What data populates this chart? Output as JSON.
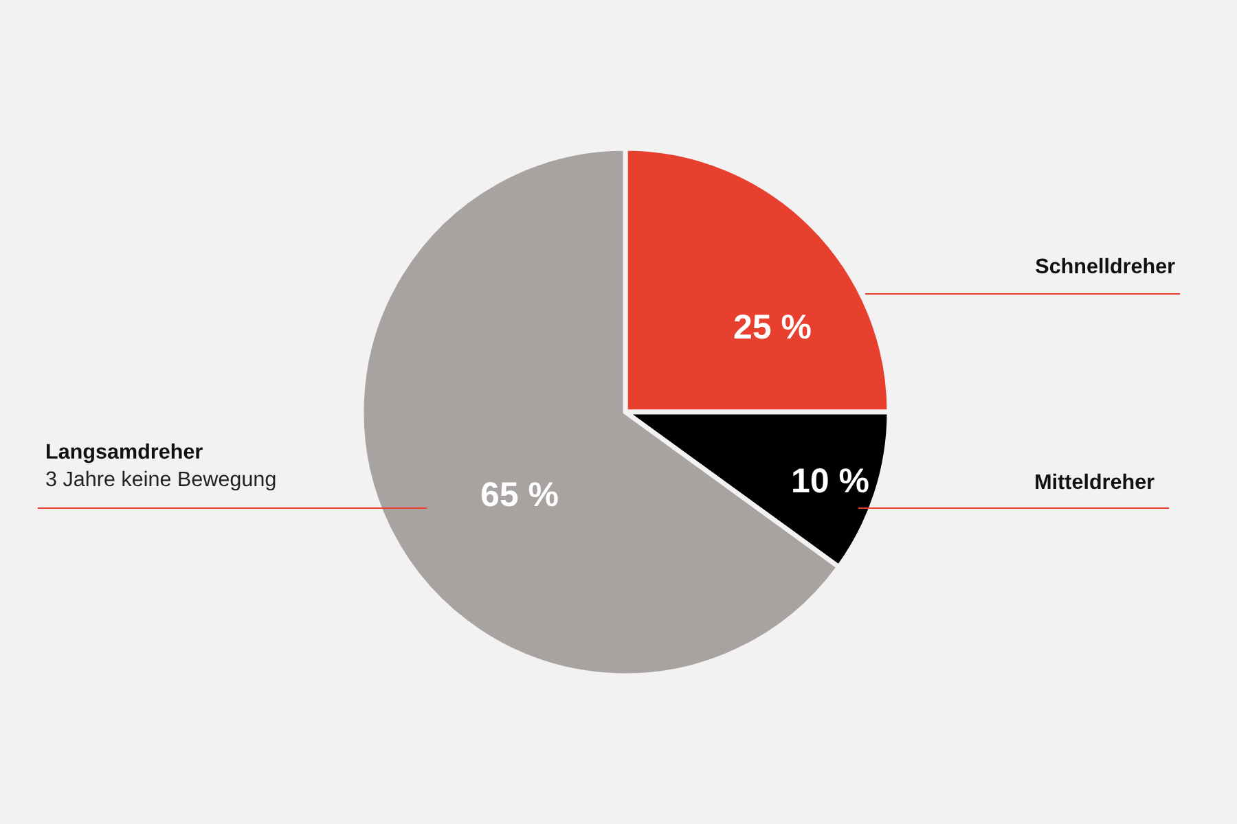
{
  "chart_data": {
    "type": "pie",
    "categories": [
      "Schnelldreher",
      "Mitteldreher",
      "Langsamdreher"
    ],
    "values": [
      25,
      10,
      65
    ],
    "colors": [
      "#e8402f",
      "#000000",
      "#a8a3a0"
    ],
    "value_labels": [
      "25 %",
      "10 %",
      "65 %"
    ],
    "annotations": [
      "3 Jahre keine Bewegung"
    ],
    "legend": false
  }
}
